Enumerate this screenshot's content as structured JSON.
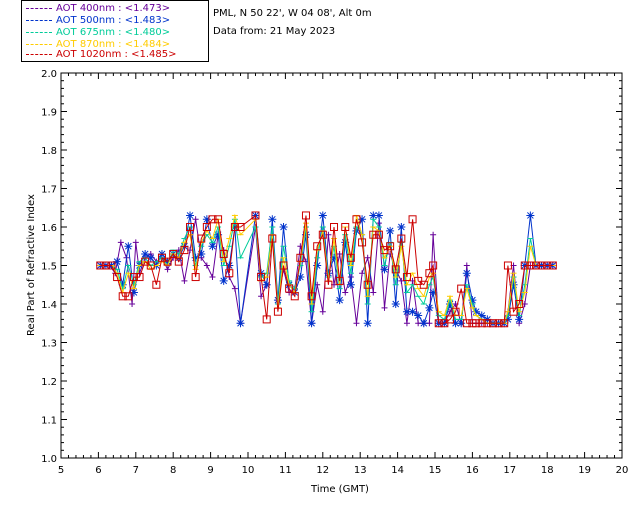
{
  "chart_data": {
    "type": "line",
    "station": "PML, N 50 22', W 04 08', Alt 0m",
    "date_text": "Data from: 21 May 2023",
    "xlabel": "Time (GMT)",
    "ylabel": "Real Part of Refractive Index",
    "xlim": [
      5,
      20
    ],
    "ylim": [
      1.0,
      2.0
    ],
    "xticks": [
      "5",
      "6",
      "7",
      "8",
      "9",
      "10",
      "11",
      "12",
      "13",
      "14",
      "15",
      "16",
      "17",
      "18",
      "19",
      "20"
    ],
    "yticks": [
      "1.0",
      "1.1",
      "1.2",
      "1.3",
      "1.4",
      "1.5",
      "1.6",
      "1.7",
      "1.8",
      "1.9",
      "2.0"
    ],
    "series": [
      {
        "name": "AOT  400nm : <1.473>",
        "color": "#660099",
        "marker": "plus",
        "x": [
          6.05,
          6.15,
          6.3,
          6.45,
          6.6,
          6.75,
          6.9,
          7.0,
          7.1,
          7.25,
          7.4,
          7.55,
          7.7,
          7.85,
          8.0,
          8.15,
          8.3,
          8.45,
          8.6,
          8.75,
          8.9,
          9.05,
          9.2,
          9.35,
          9.5,
          9.65,
          9.8,
          10.2,
          10.35,
          10.5,
          10.65,
          10.8,
          10.95,
          11.1,
          11.25,
          11.4,
          11.55,
          11.7,
          11.85,
          12.0,
          12.15,
          12.3,
          12.45,
          12.6,
          12.75,
          12.9,
          13.05,
          13.2,
          13.35,
          13.5,
          13.65,
          13.8,
          13.95,
          14.1,
          14.25,
          14.4,
          14.55,
          14.7,
          14.85,
          14.95,
          15.1,
          15.25,
          15.4,
          15.55,
          15.7,
          15.85,
          16.0,
          16.1,
          16.25,
          16.4,
          16.55,
          16.7,
          16.85,
          16.95,
          17.1,
          17.25,
          17.4,
          17.55,
          17.7,
          17.85,
          18.0,
          18.15
        ],
        "y": [
          1.5,
          1.5,
          1.5,
          1.48,
          1.56,
          1.52,
          1.4,
          1.56,
          1.48,
          1.52,
          1.53,
          1.51,
          1.52,
          1.49,
          1.52,
          1.54,
          1.46,
          1.54,
          1.62,
          1.52,
          1.5,
          1.47,
          1.58,
          1.54,
          1.47,
          1.44,
          1.35,
          1.6,
          1.42,
          1.45,
          1.58,
          1.41,
          1.49,
          1.43,
          1.44,
          1.55,
          1.51,
          1.35,
          1.45,
          1.38,
          1.58,
          1.45,
          1.53,
          1.43,
          1.47,
          1.35,
          1.48,
          1.52,
          1.43,
          1.61,
          1.39,
          1.53,
          1.49,
          1.46,
          1.35,
          1.46,
          1.35,
          1.35,
          1.35,
          1.58,
          1.35,
          1.35,
          1.38,
          1.4,
          1.35,
          1.5,
          1.35,
          1.35,
          1.35,
          1.35,
          1.35,
          1.35,
          1.35,
          1.38,
          1.5,
          1.35,
          1.4,
          1.5,
          1.5,
          1.5,
          1.5,
          1.5
        ]
      },
      {
        "name": "AOT  500nm : <1.483>",
        "color": "#0033cc",
        "marker": "star",
        "x": [
          6.05,
          6.2,
          6.35,
          6.5,
          6.65,
          6.8,
          6.95,
          7.1,
          7.25,
          7.4,
          7.55,
          7.7,
          7.85,
          8.0,
          8.15,
          8.3,
          8.45,
          8.6,
          8.75,
          8.9,
          9.05,
          9.2,
          9.35,
          9.5,
          9.65,
          9.8,
          10.2,
          10.35,
          10.5,
          10.65,
          10.8,
          10.95,
          11.1,
          11.25,
          11.4,
          11.55,
          11.7,
          11.85,
          12.0,
          12.15,
          12.3,
          12.45,
          12.6,
          12.75,
          12.9,
          13.05,
          13.2,
          13.35,
          13.5,
          13.65,
          13.8,
          13.95,
          14.1,
          14.25,
          14.4,
          14.55,
          14.7,
          14.85,
          14.95,
          15.1,
          15.25,
          15.4,
          15.55,
          15.7,
          15.85,
          16.0,
          16.1,
          16.25,
          16.4,
          16.55,
          16.7,
          16.85,
          16.95,
          17.1,
          17.25,
          17.4,
          17.55,
          17.7,
          17.85,
          18.0,
          18.15
        ],
        "y": [
          1.5,
          1.5,
          1.5,
          1.51,
          1.45,
          1.55,
          1.43,
          1.5,
          1.53,
          1.52,
          1.5,
          1.53,
          1.51,
          1.53,
          1.52,
          1.55,
          1.63,
          1.52,
          1.53,
          1.62,
          1.55,
          1.58,
          1.46,
          1.5,
          1.6,
          1.35,
          1.63,
          1.48,
          1.45,
          1.62,
          1.41,
          1.6,
          1.45,
          1.43,
          1.47,
          1.58,
          1.35,
          1.5,
          1.63,
          1.48,
          1.52,
          1.41,
          1.56,
          1.45,
          1.59,
          1.62,
          1.35,
          1.63,
          1.63,
          1.49,
          1.59,
          1.4,
          1.6,
          1.38,
          1.38,
          1.37,
          1.35,
          1.39,
          1.43,
          1.35,
          1.35,
          1.4,
          1.35,
          1.35,
          1.48,
          1.41,
          1.38,
          1.37,
          1.36,
          1.35,
          1.35,
          1.35,
          1.36,
          1.45,
          1.36,
          1.5,
          1.63,
          1.5,
          1.5,
          1.5,
          1.5
        ]
      },
      {
        "name": "AOT  675nm : <1.480>",
        "color": "#00cc99",
        "marker": "dash",
        "x": [
          6.05,
          6.2,
          6.35,
          6.5,
          6.65,
          6.8,
          6.95,
          7.1,
          7.25,
          7.4,
          7.55,
          7.7,
          7.85,
          8.0,
          8.15,
          8.3,
          8.45,
          8.6,
          8.75,
          8.9,
          9.05,
          9.2,
          9.35,
          9.5,
          9.65,
          9.8,
          10.2,
          10.35,
          10.5,
          10.65,
          10.8,
          10.95,
          11.1,
          11.25,
          11.4,
          11.55,
          11.7,
          11.85,
          12.0,
          12.15,
          12.3,
          12.45,
          12.6,
          12.75,
          12.9,
          13.05,
          13.2,
          13.35,
          13.5,
          13.65,
          13.8,
          13.95,
          14.1,
          14.25,
          14.4,
          14.55,
          14.7,
          14.85,
          14.95,
          15.1,
          15.25,
          15.4,
          15.55,
          15.7,
          15.85,
          16.0,
          16.1,
          16.25,
          16.4,
          16.55,
          16.7,
          16.85,
          16.95,
          17.1,
          17.25,
          17.4,
          17.55,
          17.7,
          17.85,
          18.0,
          18.15
        ],
        "y": [
          1.5,
          1.5,
          1.5,
          1.49,
          1.44,
          1.5,
          1.45,
          1.51,
          1.52,
          1.5,
          1.51,
          1.52,
          1.5,
          1.54,
          1.53,
          1.57,
          1.6,
          1.5,
          1.55,
          1.58,
          1.56,
          1.6,
          1.5,
          1.55,
          1.62,
          1.52,
          1.6,
          1.47,
          1.48,
          1.6,
          1.4,
          1.55,
          1.46,
          1.44,
          1.5,
          1.6,
          1.38,
          1.52,
          1.6,
          1.47,
          1.55,
          1.44,
          1.58,
          1.48,
          1.6,
          1.58,
          1.4,
          1.62,
          1.6,
          1.5,
          1.56,
          1.45,
          1.56,
          1.43,
          1.45,
          1.42,
          1.4,
          1.45,
          1.47,
          1.37,
          1.36,
          1.41,
          1.36,
          1.36,
          1.45,
          1.4,
          1.37,
          1.36,
          1.35,
          1.35,
          1.35,
          1.35,
          1.37,
          1.47,
          1.37,
          1.45,
          1.57,
          1.5,
          1.5,
          1.5,
          1.5
        ]
      },
      {
        "name": "AOT  870nm : <1.484>",
        "color": "#ffcc00",
        "marker": "dash",
        "x": [
          6.05,
          6.2,
          6.35,
          6.5,
          6.65,
          6.8,
          6.95,
          7.1,
          7.25,
          7.4,
          7.55,
          7.7,
          7.85,
          8.0,
          8.15,
          8.3,
          8.45,
          8.6,
          8.75,
          8.9,
          9.05,
          9.2,
          9.35,
          9.5,
          9.65,
          9.8,
          10.2,
          10.35,
          10.5,
          10.65,
          10.8,
          10.95,
          11.1,
          11.25,
          11.4,
          11.55,
          11.7,
          11.85,
          12.0,
          12.15,
          12.3,
          12.45,
          12.6,
          12.75,
          12.9,
          13.05,
          13.2,
          13.35,
          13.5,
          13.65,
          13.8,
          13.95,
          14.1,
          14.25,
          14.4,
          14.55,
          14.7,
          14.85,
          14.95,
          15.1,
          15.25,
          15.4,
          15.55,
          15.7,
          15.85,
          16.0,
          16.1,
          16.25,
          16.4,
          16.55,
          16.7,
          16.85,
          16.95,
          17.1,
          17.25,
          17.4,
          17.55,
          17.7,
          17.85,
          18.0,
          18.15
        ],
        "y": [
          1.5,
          1.5,
          1.5,
          1.48,
          1.43,
          1.48,
          1.44,
          1.5,
          1.51,
          1.49,
          1.5,
          1.51,
          1.5,
          1.53,
          1.52,
          1.56,
          1.58,
          1.49,
          1.56,
          1.59,
          1.57,
          1.62,
          1.51,
          1.57,
          1.63,
          1.58,
          1.62,
          1.46,
          1.47,
          1.58,
          1.39,
          1.52,
          1.45,
          1.43,
          1.51,
          1.61,
          1.4,
          1.54,
          1.59,
          1.46,
          1.57,
          1.45,
          1.6,
          1.5,
          1.63,
          1.58,
          1.42,
          1.6,
          1.59,
          1.52,
          1.55,
          1.47,
          1.55,
          1.45,
          1.48,
          1.44,
          1.42,
          1.47,
          1.48,
          1.38,
          1.37,
          1.42,
          1.37,
          1.37,
          1.44,
          1.39,
          1.37,
          1.36,
          1.35,
          1.35,
          1.35,
          1.35,
          1.38,
          1.48,
          1.38,
          1.43,
          1.55,
          1.5,
          1.5,
          1.5,
          1.5
        ]
      },
      {
        "name": "AOT 1020nm : <1.485>",
        "color": "#cc0000",
        "marker": "square",
        "x": [
          6.05,
          6.2,
          6.35,
          6.5,
          6.65,
          6.8,
          6.95,
          7.1,
          7.25,
          7.4,
          7.55,
          7.7,
          7.85,
          8.0,
          8.15,
          8.3,
          8.45,
          8.6,
          8.75,
          8.9,
          9.05,
          9.2,
          9.35,
          9.5,
          9.65,
          9.8,
          10.2,
          10.35,
          10.5,
          10.65,
          10.8,
          10.95,
          11.1,
          11.25,
          11.4,
          11.55,
          11.7,
          11.85,
          12.0,
          12.15,
          12.3,
          12.45,
          12.6,
          12.75,
          12.9,
          13.05,
          13.2,
          13.35,
          13.5,
          13.65,
          13.8,
          13.95,
          14.1,
          14.25,
          14.4,
          14.55,
          14.7,
          14.85,
          14.95,
          15.1,
          15.25,
          15.4,
          15.55,
          15.7,
          15.85,
          16.0,
          16.1,
          16.25,
          16.4,
          16.55,
          16.7,
          16.85,
          16.95,
          17.1,
          17.25,
          17.4,
          17.55,
          17.7,
          17.85,
          18.0,
          18.15
        ],
        "y": [
          1.5,
          1.5,
          1.5,
          1.47,
          1.42,
          1.42,
          1.47,
          1.47,
          1.51,
          1.5,
          1.45,
          1.52,
          1.51,
          1.53,
          1.51,
          1.54,
          1.6,
          1.47,
          1.57,
          1.6,
          1.62,
          1.62,
          1.53,
          1.48,
          1.6,
          1.6,
          1.63,
          1.47,
          1.36,
          1.57,
          1.38,
          1.5,
          1.44,
          1.42,
          1.52,
          1.63,
          1.42,
          1.55,
          1.58,
          1.45,
          1.6,
          1.46,
          1.6,
          1.52,
          1.62,
          1.56,
          1.45,
          1.58,
          1.58,
          1.54,
          1.55,
          1.49,
          1.57,
          1.47,
          1.62,
          1.46,
          1.45,
          1.48,
          1.5,
          1.35,
          1.35,
          1.36,
          1.38,
          1.44,
          1.35,
          1.35,
          1.35,
          1.35,
          1.35,
          1.35,
          1.35,
          1.35,
          1.5,
          1.38,
          1.4,
          1.5,
          1.5,
          1.5,
          1.5,
          1.5,
          1.5
        ]
      }
    ]
  }
}
